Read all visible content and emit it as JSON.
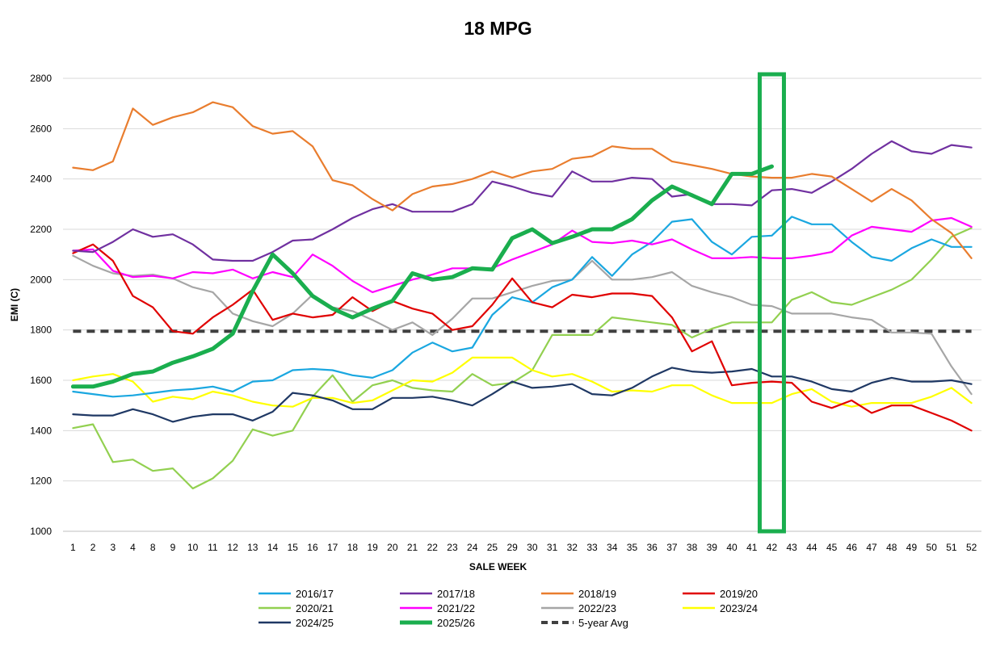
{
  "chart_data": {
    "type": "line",
    "title": "18 MPG",
    "xlabel": "SALE WEEK",
    "ylabel": "EMI (C)",
    "ylim": [
      1000,
      2800
    ],
    "yticks": [
      "1000",
      "1200",
      "1400",
      "1600",
      "1800",
      "2000",
      "2200",
      "2400",
      "2600",
      "2800"
    ],
    "categories": [
      "1",
      "2",
      "3",
      "4",
      "8",
      "9",
      "10",
      "11",
      "12",
      "13",
      "14",
      "15",
      "16",
      "17",
      "18",
      "19",
      "20",
      "21",
      "22",
      "23",
      "24",
      "25",
      "29",
      "30",
      "31",
      "32",
      "33",
      "34",
      "35",
      "36",
      "37",
      "38",
      "39",
      "40",
      "41",
      "42",
      "43",
      "44",
      "45",
      "46",
      "47",
      "48",
      "49",
      "50",
      "51",
      "52"
    ],
    "grid": true,
    "legend_position": "bottom",
    "highlight": {
      "label": "42",
      "note": "green box around current sale week"
    },
    "series": [
      {
        "name": "2016/17",
        "color": "#1AA7E0",
        "dash": false,
        "width": 2.2,
        "values": [
          1555,
          1545,
          1535,
          1540,
          1550,
          1560,
          1565,
          1575,
          1555,
          1595,
          1600,
          1640,
          1645,
          1640,
          1620,
          1610,
          1640,
          1710,
          1750,
          1715,
          1730,
          1860,
          1930,
          1910,
          1970,
          2000,
          2090,
          2015,
          2100,
          2150,
          2230,
          2240,
          2150,
          2100,
          2170,
          2175,
          2250,
          2220,
          2220,
          2150,
          2090,
          2075,
          2125,
          2160,
          2130,
          2130
        ]
      },
      {
        "name": "2017/18",
        "color": "#7030A0",
        "dash": false,
        "width": 2.2,
        "values": [
          2115,
          2110,
          2150,
          2200,
          2170,
          2180,
          2140,
          2080,
          2075,
          2075,
          2110,
          2155,
          2160,
          2200,
          2245,
          2280,
          2300,
          2270,
          2270,
          2270,
          2300,
          2390,
          2370,
          2345,
          2330,
          2430,
          2390,
          2390,
          2405,
          2400,
          2330,
          2340,
          2300,
          2300,
          2295,
          2355,
          2360,
          2345,
          2390,
          2440,
          2500,
          2550,
          2510,
          2500,
          2535,
          2525
        ]
      },
      {
        "name": "2018/19",
        "color": "#E97D2E",
        "dash": false,
        "width": 2.2,
        "values": [
          2445,
          2435,
          2470,
          2680,
          2615,
          2645,
          2665,
          2705,
          2685,
          2610,
          2580,
          2590,
          2530,
          2395,
          2375,
          2320,
          2275,
          2340,
          2370,
          2380,
          2400,
          2430,
          2405,
          2430,
          2440,
          2480,
          2490,
          2530,
          2520,
          2520,
          2470,
          2455,
          2440,
          2420,
          2410,
          2405,
          2405,
          2420,
          2410,
          2360,
          2310,
          2360,
          2315,
          2240,
          2185,
          2085
        ]
      },
      {
        "name": "2019/20",
        "color": "#E00000",
        "dash": false,
        "width": 2.2,
        "values": [
          2105,
          2140,
          2075,
          1935,
          1890,
          1795,
          1785,
          1850,
          1900,
          1960,
          1840,
          1865,
          1850,
          1860,
          1930,
          1875,
          1915,
          1885,
          1865,
          1800,
          1815,
          1900,
          2005,
          1910,
          1890,
          1940,
          1930,
          1945,
          1945,
          1935,
          1850,
          1715,
          1755,
          1580,
          1590,
          1595,
          1590,
          1515,
          1490,
          1520,
          1470,
          1500,
          1500,
          1470,
          1440,
          1400
        ]
      },
      {
        "name": "2020/21",
        "color": "#92D050",
        "dash": false,
        "width": 2.2,
        "values": [
          1410,
          1425,
          1275,
          1285,
          1240,
          1250,
          1170,
          1210,
          1280,
          1405,
          1380,
          1400,
          1535,
          1620,
          1515,
          1580,
          1600,
          1570,
          1560,
          1555,
          1625,
          1580,
          1590,
          1640,
          1780,
          1780,
          1780,
          1850,
          1840,
          1830,
          1820,
          1770,
          1805,
          1830,
          1830,
          1830,
          1920,
          1950,
          1910,
          1900,
          1930,
          1960,
          2000,
          2080,
          2170,
          2205
        ]
      },
      {
        "name": "2021/22",
        "color": "#FF00FF",
        "dash": false,
        "width": 2.2,
        "values": [
          2115,
          2120,
          2035,
          2010,
          2015,
          2005,
          2030,
          2025,
          2040,
          2005,
          2030,
          2010,
          2100,
          2055,
          1995,
          1950,
          1975,
          2000,
          2020,
          2045,
          2045,
          2045,
          2080,
          2110,
          2140,
          2195,
          2150,
          2145,
          2155,
          2140,
          2160,
          2120,
          2085,
          2085,
          2090,
          2085,
          2085,
          2095,
          2110,
          2175,
          2210,
          2200,
          2190,
          2235,
          2245,
          2210
        ]
      },
      {
        "name": "2022/23",
        "color": "#A6A6A6",
        "dash": false,
        "width": 2.2,
        "values": [
          2095,
          2055,
          2025,
          2015,
          2020,
          2005,
          1970,
          1950,
          1865,
          1835,
          1815,
          1865,
          1940,
          1890,
          1875,
          1840,
          1800,
          1830,
          1780,
          1845,
          1925,
          1925,
          1950,
          1975,
          1995,
          2000,
          2075,
          2000,
          2000,
          2010,
          2030,
          1975,
          1950,
          1930,
          1900,
          1895,
          1865,
          1865,
          1865,
          1850,
          1840,
          1790,
          1790,
          1785,
          1655,
          1545
        ]
      },
      {
        "name": "2023/24",
        "color": "#FFFF00",
        "dash": false,
        "width": 2.2,
        "values": [
          1600,
          1615,
          1625,
          1595,
          1515,
          1535,
          1525,
          1555,
          1540,
          1515,
          1500,
          1495,
          1530,
          1530,
          1510,
          1520,
          1560,
          1600,
          1595,
          1630,
          1690,
          1690,
          1690,
          1640,
          1615,
          1625,
          1595,
          1555,
          1560,
          1555,
          1580,
          1580,
          1540,
          1510,
          1510,
          1510,
          1545,
          1565,
          1515,
          1495,
          1510,
          1510,
          1510,
          1535,
          1570,
          1510
        ]
      },
      {
        "name": "2024/25",
        "color": "#1F3864",
        "dash": false,
        "width": 2.2,
        "values": [
          1465,
          1460,
          1460,
          1485,
          1465,
          1435,
          1455,
          1465,
          1465,
          1440,
          1475,
          1550,
          1540,
          1520,
          1485,
          1485,
          1530,
          1530,
          1535,
          1520,
          1500,
          1545,
          1595,
          1570,
          1575,
          1585,
          1545,
          1540,
          1570,
          1615,
          1650,
          1635,
          1630,
          1635,
          1645,
          1615,
          1615,
          1595,
          1565,
          1555,
          1590,
          1610,
          1595,
          1595,
          1600,
          1585
        ]
      },
      {
        "name": "2025/26",
        "color": "#1AAE4E",
        "dash": false,
        "width": 5,
        "values": [
          1575,
          1575,
          1595,
          1625,
          1635,
          1670,
          1695,
          1725,
          1785,
          1955,
          2100,
          2025,
          1935,
          1885,
          1850,
          1885,
          1915,
          2025,
          2000,
          2010,
          2045,
          2040,
          2165,
          2200,
          2145,
          2170,
          2200,
          2200,
          2240,
          2315,
          2370,
          2335,
          2300,
          2420,
          2420,
          2450,
          null,
          null,
          null,
          null,
          null,
          null,
          null,
          null,
          null,
          null
        ]
      },
      {
        "name": "5-year Avg",
        "color": "#404040",
        "dash": true,
        "width": 4,
        "values": [
          1795,
          1795,
          1795,
          1795,
          1795,
          1795,
          1795,
          1795,
          1795,
          1795,
          1795,
          1795,
          1795,
          1795,
          1795,
          1795,
          1795,
          1795,
          1795,
          1795,
          1795,
          1795,
          1795,
          1795,
          1795,
          1795,
          1795,
          1795,
          1795,
          1795,
          1795,
          1795,
          1795,
          1795,
          1795,
          1795,
          1795,
          1795,
          1795,
          1795,
          1795,
          1795,
          1795,
          1795,
          1795,
          1795
        ]
      }
    ]
  }
}
